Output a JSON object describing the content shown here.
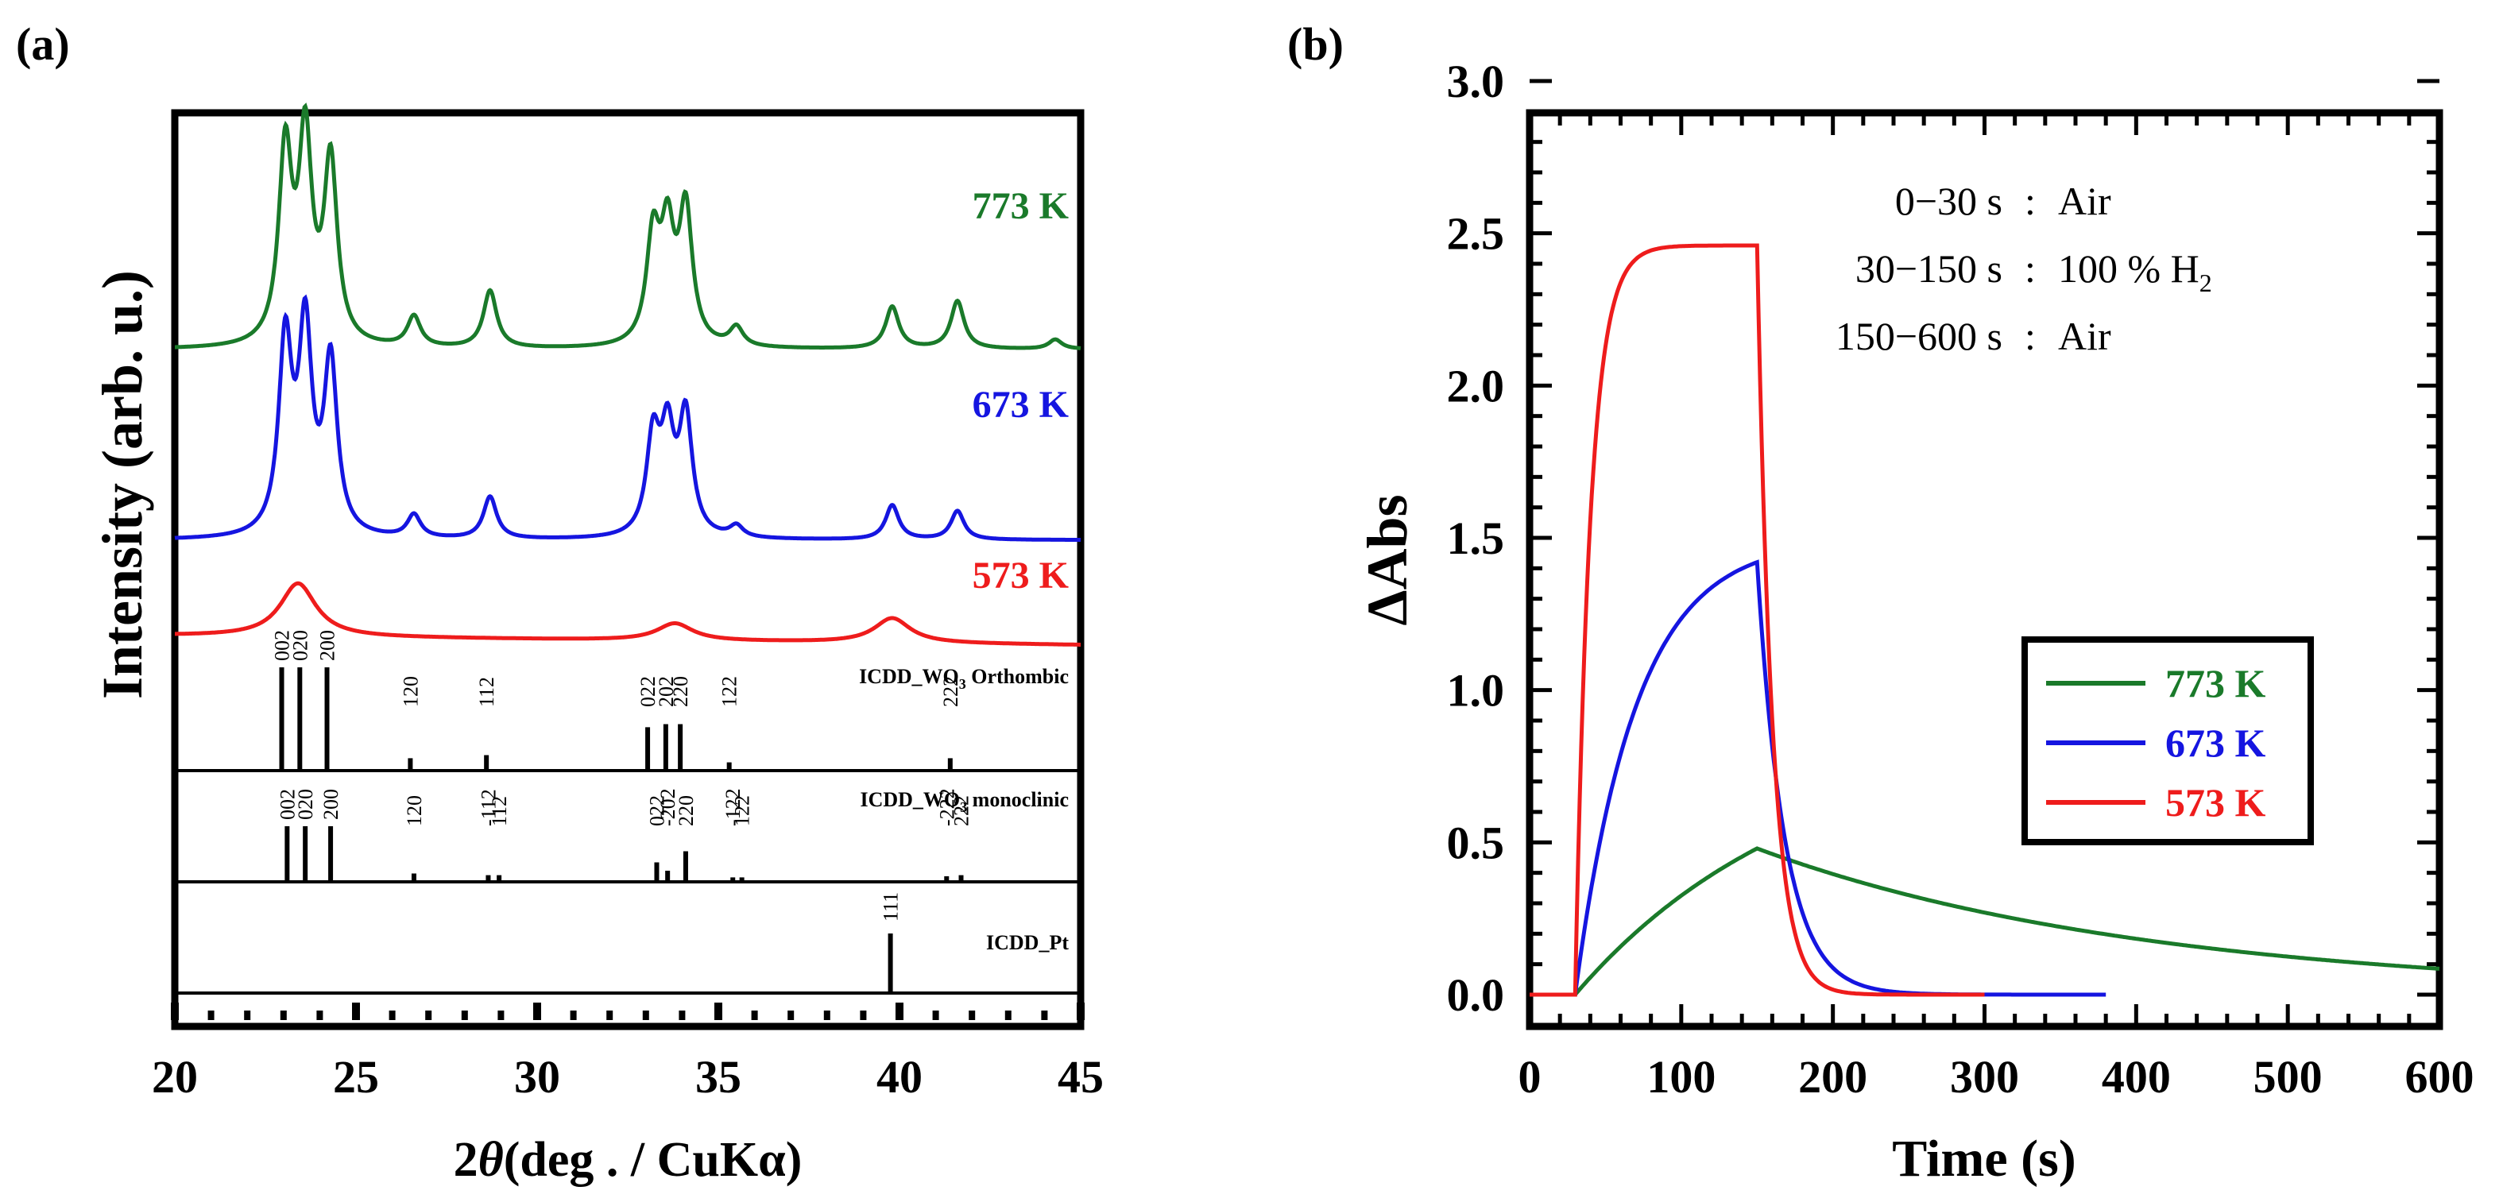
{
  "panel_a": {
    "label": "(a)",
    "ylabel": "Intensity (arb. u.)",
    "xlabel_symbol": "2",
    "xlabel_theta": "θ",
    "xlabel_rest": "(deg . / CuKα)",
    "xticks": [
      "20",
      "25",
      "30",
      "35",
      "40",
      "45"
    ]
  },
  "panel_b": {
    "label": "(b)",
    "ylabel": "ΔAbs",
    "xlabel": "Time (s)",
    "xticks": [
      "0",
      "100",
      "200",
      "300",
      "400",
      "500",
      "600"
    ],
    "yticks": [
      "0.0",
      "0.5",
      "1.0",
      "1.5",
      "2.0",
      "2.5",
      "3.0"
    ],
    "conditions": [
      {
        "range": "0−30 s",
        "sep": ":",
        "gas": "Air"
      },
      {
        "range": "30−150 s",
        "sep": ":",
        "gas": "100 % H",
        "sub": "2"
      },
      {
        "range": "150−600 s",
        "sep": ":",
        "gas": "Air"
      }
    ]
  },
  "chart_data": [
    {
      "type": "line",
      "title": "(a)",
      "xlabel": "2θ (deg . / CuKα)",
      "ylabel": "Intensity (arb. u.)",
      "xlim": [
        20,
        45
      ],
      "series": [
        {
          "name": "773 K",
          "color": "#1a7a2a",
          "offset": 3.4,
          "scale": 1.0,
          "baseline": 0.0,
          "peaks": [
            [
              23.05,
              1.0
            ],
            [
              23.6,
              1.05
            ],
            [
              24.3,
              0.95
            ],
            [
              26.6,
              0.16
            ],
            [
              28.7,
              0.3
            ],
            [
              33.2,
              0.55
            ],
            [
              33.6,
              0.55
            ],
            [
              34.1,
              0.7
            ],
            [
              35.5,
              0.1
            ],
            [
              39.8,
              0.22
            ],
            [
              41.6,
              0.25
            ],
            [
              44.3,
              0.05
            ]
          ],
          "width": 0.22
        },
        {
          "name": "673 K",
          "color": "#1515e0",
          "offset": 2.0,
          "scale": 1.0,
          "baseline": 0.0,
          "peaks": [
            [
              23.05,
              1.0
            ],
            [
              23.6,
              1.05
            ],
            [
              24.3,
              0.9
            ],
            [
              26.6,
              0.12
            ],
            [
              28.7,
              0.22
            ],
            [
              33.2,
              0.5
            ],
            [
              33.6,
              0.5
            ],
            [
              34.1,
              0.62
            ],
            [
              35.5,
              0.06
            ],
            [
              39.8,
              0.18
            ],
            [
              41.6,
              0.15
            ]
          ],
          "width": 0.22
        },
        {
          "name": "573 K",
          "color": "#ee1c1c",
          "offset": 1.0,
          "scale": 1.0,
          "baseline": 0.0,
          "peaks": [
            [
              23.4,
              0.28
            ],
            [
              33.8,
              0.09
            ],
            [
              39.8,
              0.13
            ]
          ],
          "width": 0.6
        }
      ],
      "references": [
        {
          "name": "ICDD_WO3 Orthombic",
          "name_main": "ICDD_WO",
          "name_sub": "3",
          "name_tail": " Orthombic",
          "lines": [
            {
              "x": 22.95,
              "h": 1.0,
              "label": "002"
            },
            {
              "x": 23.45,
              "h": 1.0,
              "label": "020"
            },
            {
              "x": 24.2,
              "h": 1.0,
              "label": "200"
            },
            {
              "x": 26.5,
              "h": 0.12,
              "label": "120"
            },
            {
              "x": 28.6,
              "h": 0.15,
              "label": "112"
            },
            {
              "x": 33.05,
              "h": 0.42,
              "label": "022"
            },
            {
              "x": 33.55,
              "h": 0.45,
              "label": "202"
            },
            {
              "x": 33.95,
              "h": 0.45,
              "label": "220"
            },
            {
              "x": 35.3,
              "h": 0.08,
              "label": "122"
            },
            {
              "x": 41.4,
              "h": 0.12,
              "label": "222"
            }
          ]
        },
        {
          "name": "ICDD_WO3 monoclinic",
          "name_main": "ICDD_WO",
          "name_sub": "3",
          "name_tail": " monoclinic",
          "lines": [
            {
              "x": 23.1,
              "h": 1.0,
              "label": "002"
            },
            {
              "x": 23.6,
              "h": 1.0,
              "label": "020"
            },
            {
              "x": 24.3,
              "h": 1.0,
              "label": "200"
            },
            {
              "x": 26.6,
              "h": 0.15,
              "label": "120"
            },
            {
              "x": 28.65,
              "h": 0.12,
              "label": "-112"
            },
            {
              "x": 28.95,
              "h": 0.12,
              "label": "112"
            },
            {
              "x": 33.3,
              "h": 0.35,
              "label": "022"
            },
            {
              "x": 33.6,
              "h": 0.2,
              "label": "-202"
            },
            {
              "x": 34.1,
              "h": 0.55,
              "label": "220"
            },
            {
              "x": 35.4,
              "h": 0.08,
              "label": "-122"
            },
            {
              "x": 35.65,
              "h": 0.08,
              "label": "122"
            },
            {
              "x": 41.3,
              "h": 0.1,
              "label": "-222"
            },
            {
              "x": 41.7,
              "h": 0.12,
              "label": "222"
            }
          ]
        },
        {
          "name": "ICDD_Pt",
          "name_main": "ICDD_Pt",
          "name_sub": "",
          "name_tail": "",
          "lines": [
            {
              "x": 39.75,
              "h": 1.0,
              "label": "111"
            }
          ]
        }
      ]
    },
    {
      "type": "line",
      "title": "(b)",
      "xlabel": "Time (s)",
      "ylabel": "ΔAbs",
      "xlim": [
        0,
        600
      ],
      "ylim": [
        0,
        3.0
      ],
      "legend": "middle-right",
      "series": [
        {
          "name": "773 K",
          "color": "#1a7a2a",
          "peak": 0.48,
          "tau_rise": 150,
          "tau_decay": 260,
          "end": 600
        },
        {
          "name": "673 K",
          "color": "#1515e0",
          "peak": 1.42,
          "tau_rise": 40,
          "tau_decay": 18,
          "end": 380
        },
        {
          "name": "573 K",
          "color": "#ee1c1c",
          "peak": 2.46,
          "tau_rise": 10,
          "tau_decay": 10,
          "end": 300
        }
      ]
    }
  ]
}
